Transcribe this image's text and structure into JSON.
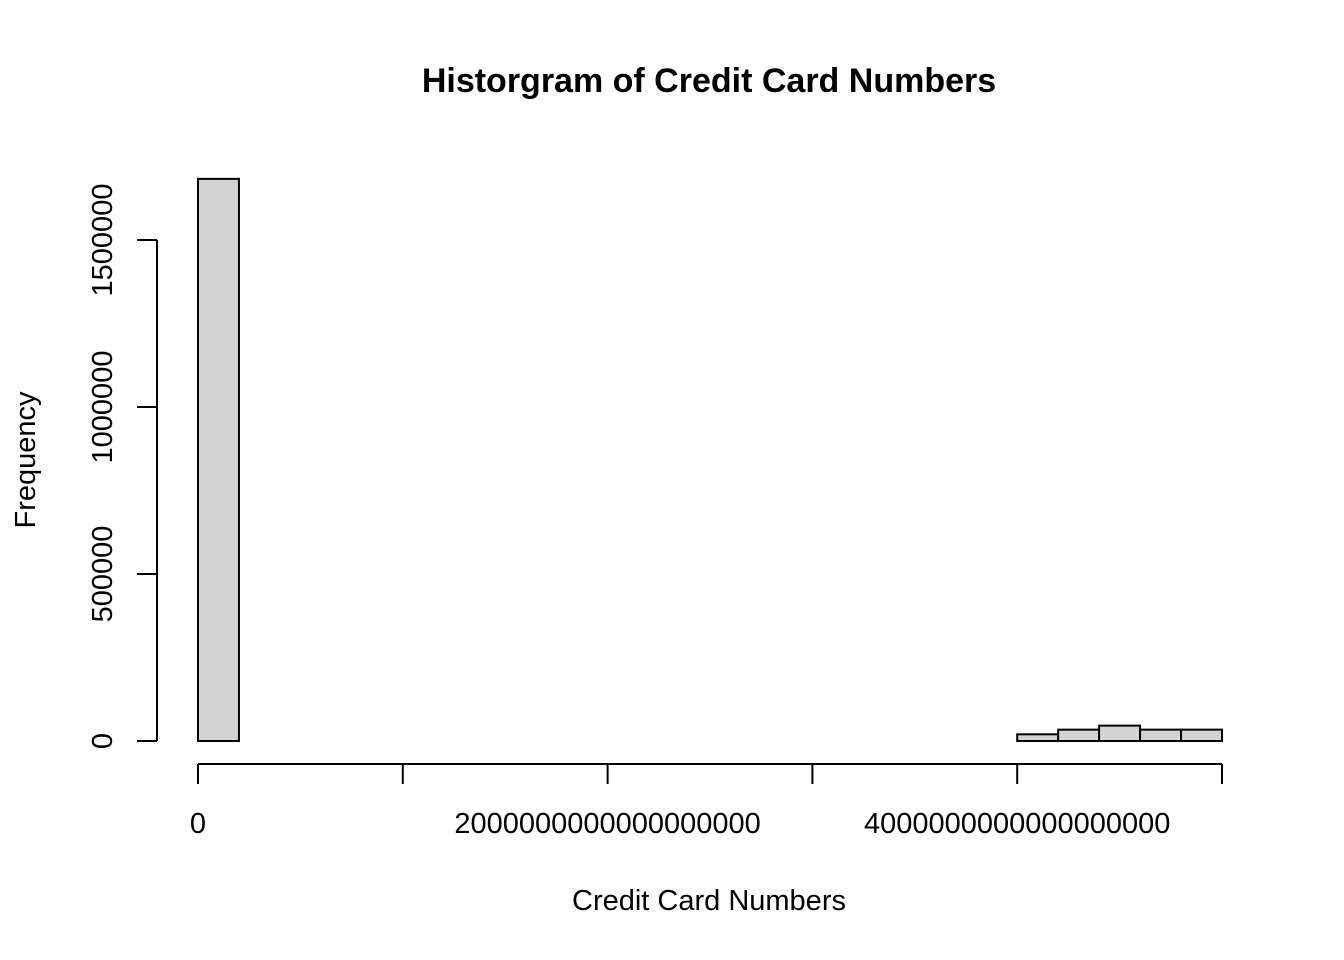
{
  "chart_data": {
    "type": "bar",
    "title": "Historgram of Credit Card Numbers",
    "xlabel": "Credit Card Numbers",
    "ylabel": "Frequency",
    "bar_fill": "#d3d3d3",
    "bar_stroke": "#000000",
    "xlim": [
      0,
      5000000000000000000
    ],
    "ylim": [
      0,
      1700000
    ],
    "x_ticks": [
      {
        "value": 0,
        "label": "0"
      },
      {
        "value": 1000000000000000000,
        "label": ""
      },
      {
        "value": 2000000000000000000,
        "label": "2000000000000000000"
      },
      {
        "value": 3000000000000000000,
        "label": ""
      },
      {
        "value": 4000000000000000000,
        "label": "4000000000000000000"
      },
      {
        "value": 5000000000000000000,
        "label": ""
      }
    ],
    "y_ticks": [
      {
        "value": 0,
        "label": "0"
      },
      {
        "value": 500000,
        "label": "500000"
      },
      {
        "value": 1000000,
        "label": "1000000"
      },
      {
        "value": 1500000,
        "label": "1500000"
      }
    ],
    "bin_width": 200000000000000000,
    "bins": [
      {
        "start": 0,
        "count": 1683000
      },
      {
        "start": 200000000000000000,
        "count": 0
      },
      {
        "start": 400000000000000000,
        "count": 0
      },
      {
        "start": 600000000000000000,
        "count": 0
      },
      {
        "start": 800000000000000000,
        "count": 0
      },
      {
        "start": 1000000000000000000,
        "count": 0
      },
      {
        "start": 1200000000000000000,
        "count": 0
      },
      {
        "start": 1400000000000000000,
        "count": 0
      },
      {
        "start": 1600000000000000000,
        "count": 0
      },
      {
        "start": 1800000000000000000,
        "count": 0
      },
      {
        "start": 2000000000000000000,
        "count": 0
      },
      {
        "start": 2200000000000000000,
        "count": 0
      },
      {
        "start": 2400000000000000000,
        "count": 0
      },
      {
        "start": 2600000000000000000,
        "count": 0
      },
      {
        "start": 2800000000000000000,
        "count": 0
      },
      {
        "start": 3000000000000000000,
        "count": 0
      },
      {
        "start": 3200000000000000000,
        "count": 0
      },
      {
        "start": 3400000000000000000,
        "count": 0
      },
      {
        "start": 3600000000000000000,
        "count": 0
      },
      {
        "start": 3800000000000000000,
        "count": 0
      },
      {
        "start": 4000000000000000000,
        "count": 20000
      },
      {
        "start": 4200000000000000000,
        "count": 34000
      },
      {
        "start": 4400000000000000000,
        "count": 46000
      },
      {
        "start": 4600000000000000000,
        "count": 34000
      },
      {
        "start": 4800000000000000000,
        "count": 34000
      }
    ]
  }
}
